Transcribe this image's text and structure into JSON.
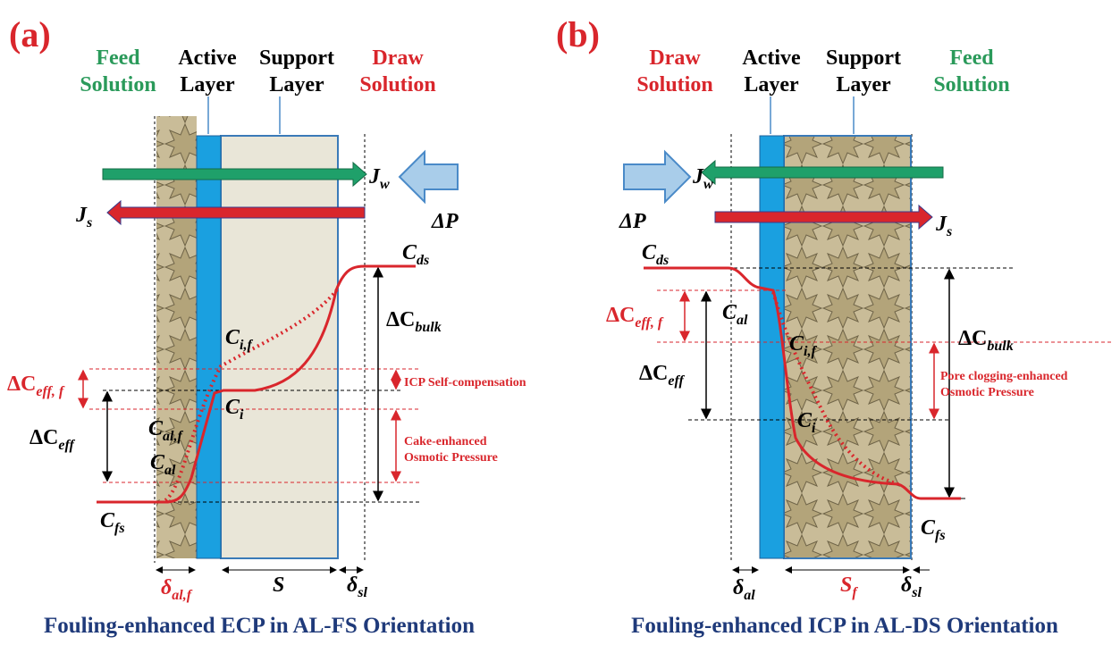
{
  "panels": [
    {
      "label": "(a)",
      "headers": {
        "feed": [
          "Feed",
          "Solution"
        ],
        "active": [
          "Active",
          "Layer"
        ],
        "support": [
          "Support",
          "Layer"
        ],
        "draw": [
          "Draw",
          "Solution"
        ]
      },
      "symbols": {
        "jw": [
          "J",
          "w"
        ],
        "dp": "ΔP",
        "js": [
          "J",
          "s"
        ],
        "cds": [
          "C",
          "ds"
        ],
        "dcbulk": [
          "ΔC",
          "bulk"
        ],
        "cif": [
          "C",
          "i,f"
        ],
        "ci": [
          "C",
          "i"
        ],
        "dceffff": [
          "ΔC",
          "eff, f"
        ],
        "calf": [
          "C",
          "al,f"
        ],
        "dceff": [
          "ΔC",
          "eff"
        ],
        "cal": [
          "C",
          "al"
        ],
        "cfs": [
          "C",
          "fs"
        ],
        "dal": [
          "δ",
          "al,f"
        ],
        "s": "S",
        "dsl": [
          "δ",
          "sl"
        ]
      },
      "notes": [
        [
          "ICP Self-compensation"
        ],
        [
          "Cake-enhanced",
          "Osmotic Pressure"
        ]
      ],
      "caption": "Fouling-enhanced ECP in AL-FS Orientation"
    },
    {
      "label": "(b)",
      "headers": {
        "draw": [
          "Draw",
          "Solution"
        ],
        "active": [
          "Active",
          "Layer"
        ],
        "support": [
          "Support",
          "Layer"
        ],
        "feed": [
          "Feed",
          "Solution"
        ]
      },
      "symbols": {
        "jw": [
          "J",
          "w"
        ],
        "dp": "ΔP",
        "js": [
          "J",
          "s"
        ],
        "cds": [
          "C",
          "ds"
        ],
        "dcbulk": [
          "ΔC",
          "bulk"
        ],
        "dceffff": [
          "ΔC",
          "eff, f"
        ],
        "cal": [
          "C",
          "al"
        ],
        "cif": [
          "C",
          "i,f"
        ],
        "dceff": [
          "ΔC",
          "eff"
        ],
        "ci": [
          "C",
          "i"
        ],
        "cfs": [
          "C",
          "fs"
        ],
        "dal": [
          "δ",
          "al"
        ],
        "s": [
          "S",
          "f"
        ],
        "dsl": [
          "δ",
          "sl"
        ]
      },
      "notes": [
        [
          "Pore clogging-enhanced",
          "Osmotic Pressure"
        ]
      ],
      "caption": "Fouling-enhanced ICP in AL-DS Orientation"
    }
  ]
}
